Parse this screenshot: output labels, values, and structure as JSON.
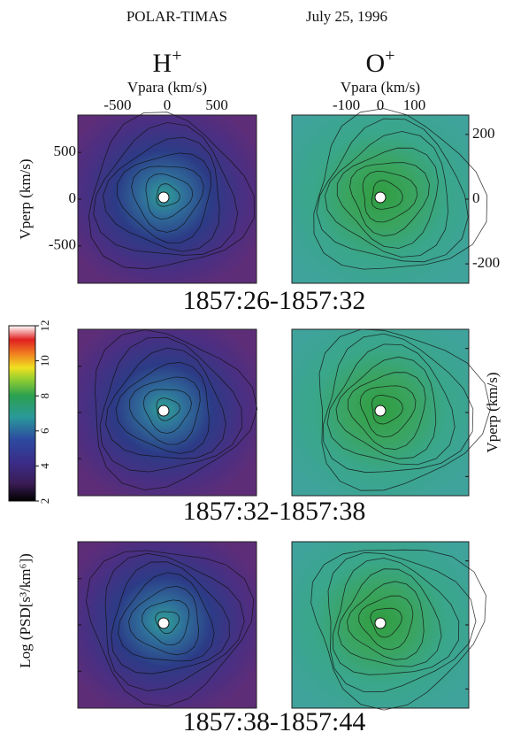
{
  "title": "POLAR-TIMAS",
  "date": "July 25, 1996",
  "x_label": "Vpara (km/s)",
  "y_label": "Vperp (km/s)",
  "species": [
    {
      "symbol": "H",
      "charge": "+",
      "xticks": [
        -500,
        0,
        500
      ],
      "xlim": [
        -900,
        900
      ],
      "yticks": [
        500,
        0,
        -500
      ],
      "ylim": [
        -900,
        900
      ]
    },
    {
      "symbol": "O",
      "charge": "+",
      "xticks": [
        -100,
        0,
        100
      ],
      "xlim": [
        -260,
        260
      ],
      "yticks": [
        200,
        0,
        -200
      ],
      "ylim": [
        -260,
        260
      ]
    }
  ],
  "time_ranges": [
    "1857:26-1857:32",
    "1857:32-1857:38",
    "1857:38-1857:44"
  ],
  "colorbar": {
    "label": "Log (PSD[s³/km⁶])",
    "ticks": [
      2,
      4,
      6,
      8,
      10,
      12
    ],
    "lim": [
      2,
      12
    ]
  }
}
